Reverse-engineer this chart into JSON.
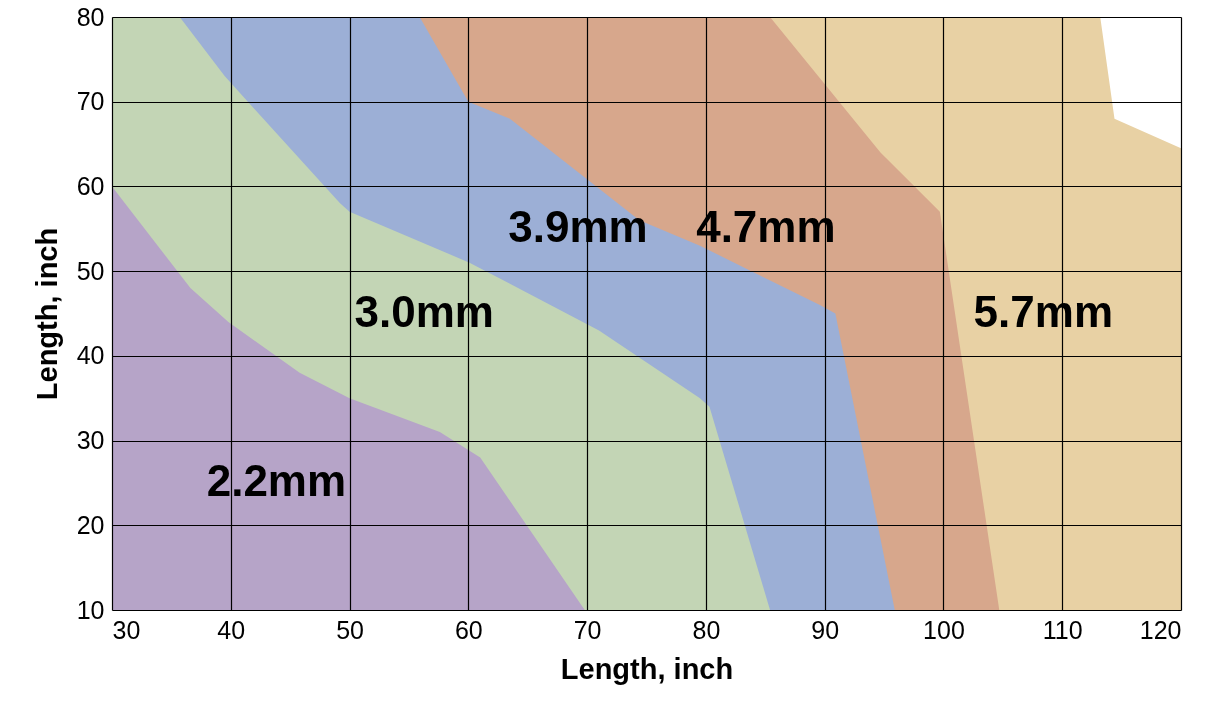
{
  "chart_data": {
    "type": "area",
    "xlabel": "Length, inch",
    "ylabel": "Length, inch",
    "xlim": [
      30,
      120
    ],
    "ylim": [
      10,
      80
    ],
    "xticks": [
      30,
      40,
      50,
      60,
      70,
      80,
      90,
      100,
      110,
      120
    ],
    "yticks": [
      10,
      20,
      30,
      40,
      50,
      60,
      70,
      80
    ],
    "grid": true,
    "series": [
      {
        "name": "2.2mm",
        "color": "#b6a4c8",
        "x": [
          30,
          36.6,
          39.8,
          45.8,
          50,
          57.6,
          61,
          69.8
        ],
        "values": [
          60,
          48,
          44,
          38,
          35,
          31,
          28,
          10
        ]
      },
      {
        "name": "3.0mm",
        "color": "#c3d5b5",
        "x": [
          30,
          35.7,
          39.5,
          49.2,
          50,
          60.1,
          71,
          79.5,
          80.3,
          85.4
        ],
        "values": [
          80,
          80,
          73,
          58,
          57,
          51,
          43,
          35,
          34,
          10
        ]
      },
      {
        "name": "3.9mm",
        "color": "#9cafd6",
        "x": [
          35.7,
          55.9,
          60,
          63.5,
          74.4,
          79.5,
          89.6,
          90.9,
          95.9
        ],
        "values": [
          80,
          80,
          70,
          68,
          56,
          53,
          46,
          45,
          10
        ]
      },
      {
        "name": "4.7mm",
        "color": "#d7a78c",
        "x": [
          55.9,
          85.4,
          94.7,
          99.7,
          104.7
        ],
        "values": [
          80,
          80,
          64,
          57,
          10
        ]
      },
      {
        "name": "5.7mm",
        "color": "#e8d1a4",
        "x": [
          85.4,
          113.2,
          114.4,
          120
        ],
        "values": [
          80,
          80,
          68,
          64.5
        ]
      }
    ]
  }
}
